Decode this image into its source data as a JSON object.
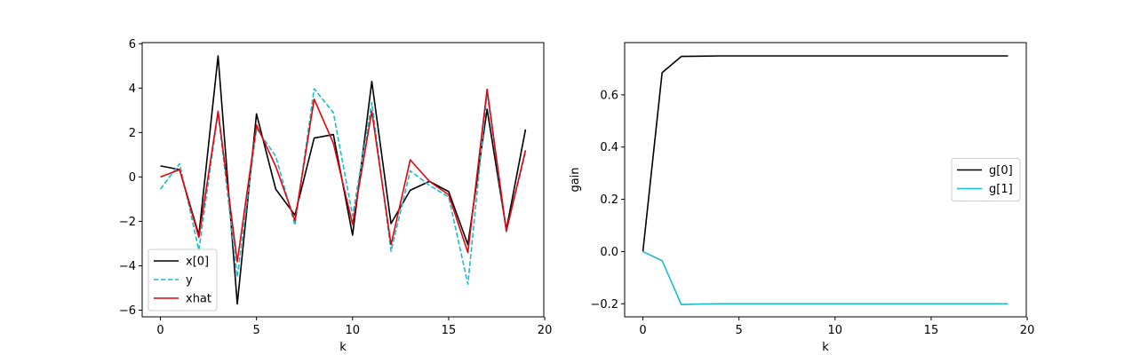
{
  "chart_data": [
    {
      "type": "line",
      "xlabel": "k",
      "ylabel": "",
      "xlim": [
        -0.95,
        19.95
      ],
      "ylim": [
        -6.3,
        6.05
      ],
      "xticks": [
        0,
        5,
        10,
        15,
        20
      ],
      "yticks": [
        -6,
        -4,
        -2,
        0,
        2,
        4,
        6
      ],
      "legend": "lower-left",
      "grid": false,
      "x": [
        0,
        1,
        2,
        3,
        4,
        5,
        6,
        7,
        8,
        9,
        10,
        11,
        12,
        13,
        14,
        15,
        16,
        17,
        18,
        19
      ],
      "series": [
        {
          "name": "x[0]",
          "color": "#000000",
          "dash": "solid",
          "values": [
            0.5,
            0.33,
            -2.62,
            5.45,
            -5.72,
            2.84,
            -0.55,
            -1.72,
            1.75,
            1.91,
            -2.62,
            4.3,
            -2.1,
            -0.6,
            -0.2,
            -0.66,
            -3.05,
            3.05,
            -2.38,
            2.14
          ]
        },
        {
          "name": "y",
          "color": "#17becf",
          "dash": "dashed",
          "values": [
            -0.55,
            0.6,
            -3.3,
            2.91,
            -4.5,
            2.18,
            0.94,
            -2.17,
            3.97,
            2.9,
            -1.75,
            3.35,
            -3.35,
            0.28,
            -0.38,
            -0.9,
            -4.83,
            3.8,
            -2.47,
            1.15
          ]
        },
        {
          "name": "xhat",
          "color": "#e8000b",
          "dash": "solid",
          "values": [
            0.0,
            0.33,
            -2.72,
            2.96,
            -3.82,
            2.34,
            0.48,
            -1.97,
            3.5,
            1.52,
            -2.13,
            2.96,
            -3.05,
            0.77,
            -0.2,
            -0.8,
            -3.4,
            3.95,
            -2.43,
            1.2
          ]
        }
      ]
    },
    {
      "type": "line",
      "xlabel": "k",
      "ylabel": "gain",
      "xlim": [
        -0.95,
        19.95
      ],
      "ylim": [
        -0.25,
        0.8
      ],
      "xticks": [
        0,
        5,
        10,
        15,
        20
      ],
      "yticks": [
        -0.2,
        0.0,
        0.2,
        0.4,
        0.6
      ],
      "legend": "center-right",
      "grid": false,
      "x": [
        0,
        1,
        2,
        3,
        4,
        5,
        6,
        7,
        8,
        9,
        10,
        11,
        12,
        13,
        14,
        15,
        16,
        17,
        18,
        19
      ],
      "series": [
        {
          "name": "g[0]",
          "color": "#000000",
          "dash": "solid",
          "values": [
            0.0,
            0.685,
            0.747,
            0.748,
            0.749,
            0.749,
            0.749,
            0.749,
            0.749,
            0.749,
            0.749,
            0.749,
            0.749,
            0.749,
            0.749,
            0.749,
            0.749,
            0.749,
            0.749,
            0.749
          ]
        },
        {
          "name": "g[1]",
          "color": "#17becf",
          "dash": "solid",
          "values": [
            0.0,
            -0.035,
            -0.203,
            -0.201,
            -0.2,
            -0.2,
            -0.2,
            -0.2,
            -0.2,
            -0.2,
            -0.2,
            -0.2,
            -0.2,
            -0.2,
            -0.2,
            -0.2,
            -0.2,
            -0.2,
            -0.2,
            -0.2
          ]
        }
      ]
    }
  ]
}
